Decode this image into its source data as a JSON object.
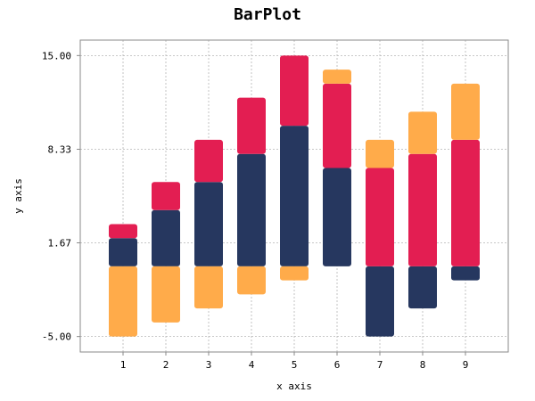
{
  "chart_data": {
    "type": "bar",
    "stacked": true,
    "title": "BarPlot",
    "xlabel": "x axis",
    "ylabel": "y axis",
    "ylim": [
      -6.1,
      16.1
    ],
    "yticks": [
      -5.0,
      1.67,
      8.33,
      15.0
    ],
    "ytick_labels": [
      "-5.00",
      "1.67",
      "8.33",
      "15.00"
    ],
    "xlim": [
      0,
      10
    ],
    "categories": [
      "1",
      "2",
      "3",
      "4",
      "5",
      "6",
      "7",
      "8",
      "9"
    ],
    "grid": true,
    "series": [
      {
        "color": "#26375f",
        "values": [
          2,
          4,
          6,
          8,
          10,
          7,
          -5,
          -3,
          -1
        ]
      },
      {
        "color": "#e31e52",
        "values": [
          1,
          2,
          3,
          4,
          5,
          6,
          7,
          8,
          9
        ]
      },
      {
        "color": "#ffab4a",
        "values": [
          -5,
          -4,
          -3,
          -2,
          -1,
          1,
          2,
          3,
          4
        ]
      }
    ]
  }
}
